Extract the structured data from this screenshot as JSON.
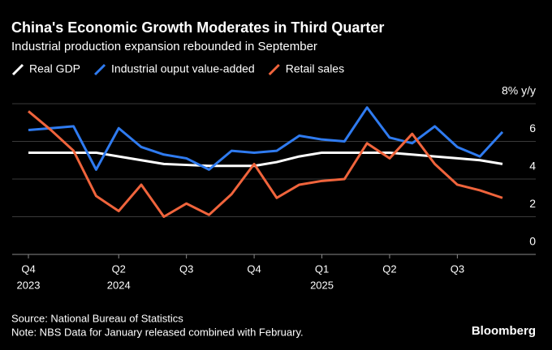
{
  "chart_data": {
    "type": "line",
    "title": "China's Economic Growth Moderates in Third Quarter",
    "subtitle": "Industrial production expansion rebounded in September",
    "categories": [
      "Q4",
      null,
      null,
      null,
      "Q2",
      null,
      null,
      "Q3",
      null,
      null,
      "Q4",
      null,
      null,
      "Q1",
      null,
      null,
      "Q2",
      null,
      null,
      "Q3",
      null,
      null
    ],
    "category_years": [
      "2023",
      null,
      null,
      null,
      "2024",
      null,
      null,
      null,
      null,
      null,
      null,
      null,
      null,
      "2025",
      null,
      null,
      null,
      null,
      null,
      null,
      null,
      null
    ],
    "series": [
      {
        "name": "Real GDP",
        "color": "#ffffff",
        "values": [
          5.4,
          5.4,
          5.4,
          5.4,
          5.2,
          5.0,
          4.8,
          4.75,
          4.7,
          4.7,
          4.7,
          4.9,
          5.2,
          5.4,
          5.4,
          5.4,
          5.4,
          5.3,
          5.2,
          5.1,
          5.0,
          4.8
        ]
      },
      {
        "name": "Industrial ouput value-added",
        "color": "#2f7bf0",
        "values": [
          6.6,
          6.7,
          6.8,
          4.5,
          6.7,
          5.7,
          5.3,
          5.1,
          4.5,
          5.5,
          5.4,
          5.5,
          6.3,
          6.1,
          6.0,
          7.8,
          6.2,
          5.9,
          6.8,
          5.7,
          5.2,
          6.5
        ]
      },
      {
        "name": "Retail sales",
        "color": "#f0643c",
        "values": [
          7.6,
          6.6,
          5.5,
          3.1,
          2.3,
          3.7,
          2.0,
          2.7,
          2.1,
          3.2,
          4.8,
          3.0,
          3.7,
          3.9,
          4.0,
          5.9,
          5.1,
          6.4,
          4.8,
          3.7,
          3.4,
          3.0
        ]
      }
    ],
    "ylim": [
      0,
      8
    ],
    "yticks": [
      0,
      2,
      4,
      6,
      {
        "value": 8,
        "label": "8% y/y"
      }
    ],
    "grid": true,
    "source": "Source: National Bureau of Statistics",
    "note": "Note: NBS Data for January released combined with February.",
    "brand": "Bloomberg"
  }
}
